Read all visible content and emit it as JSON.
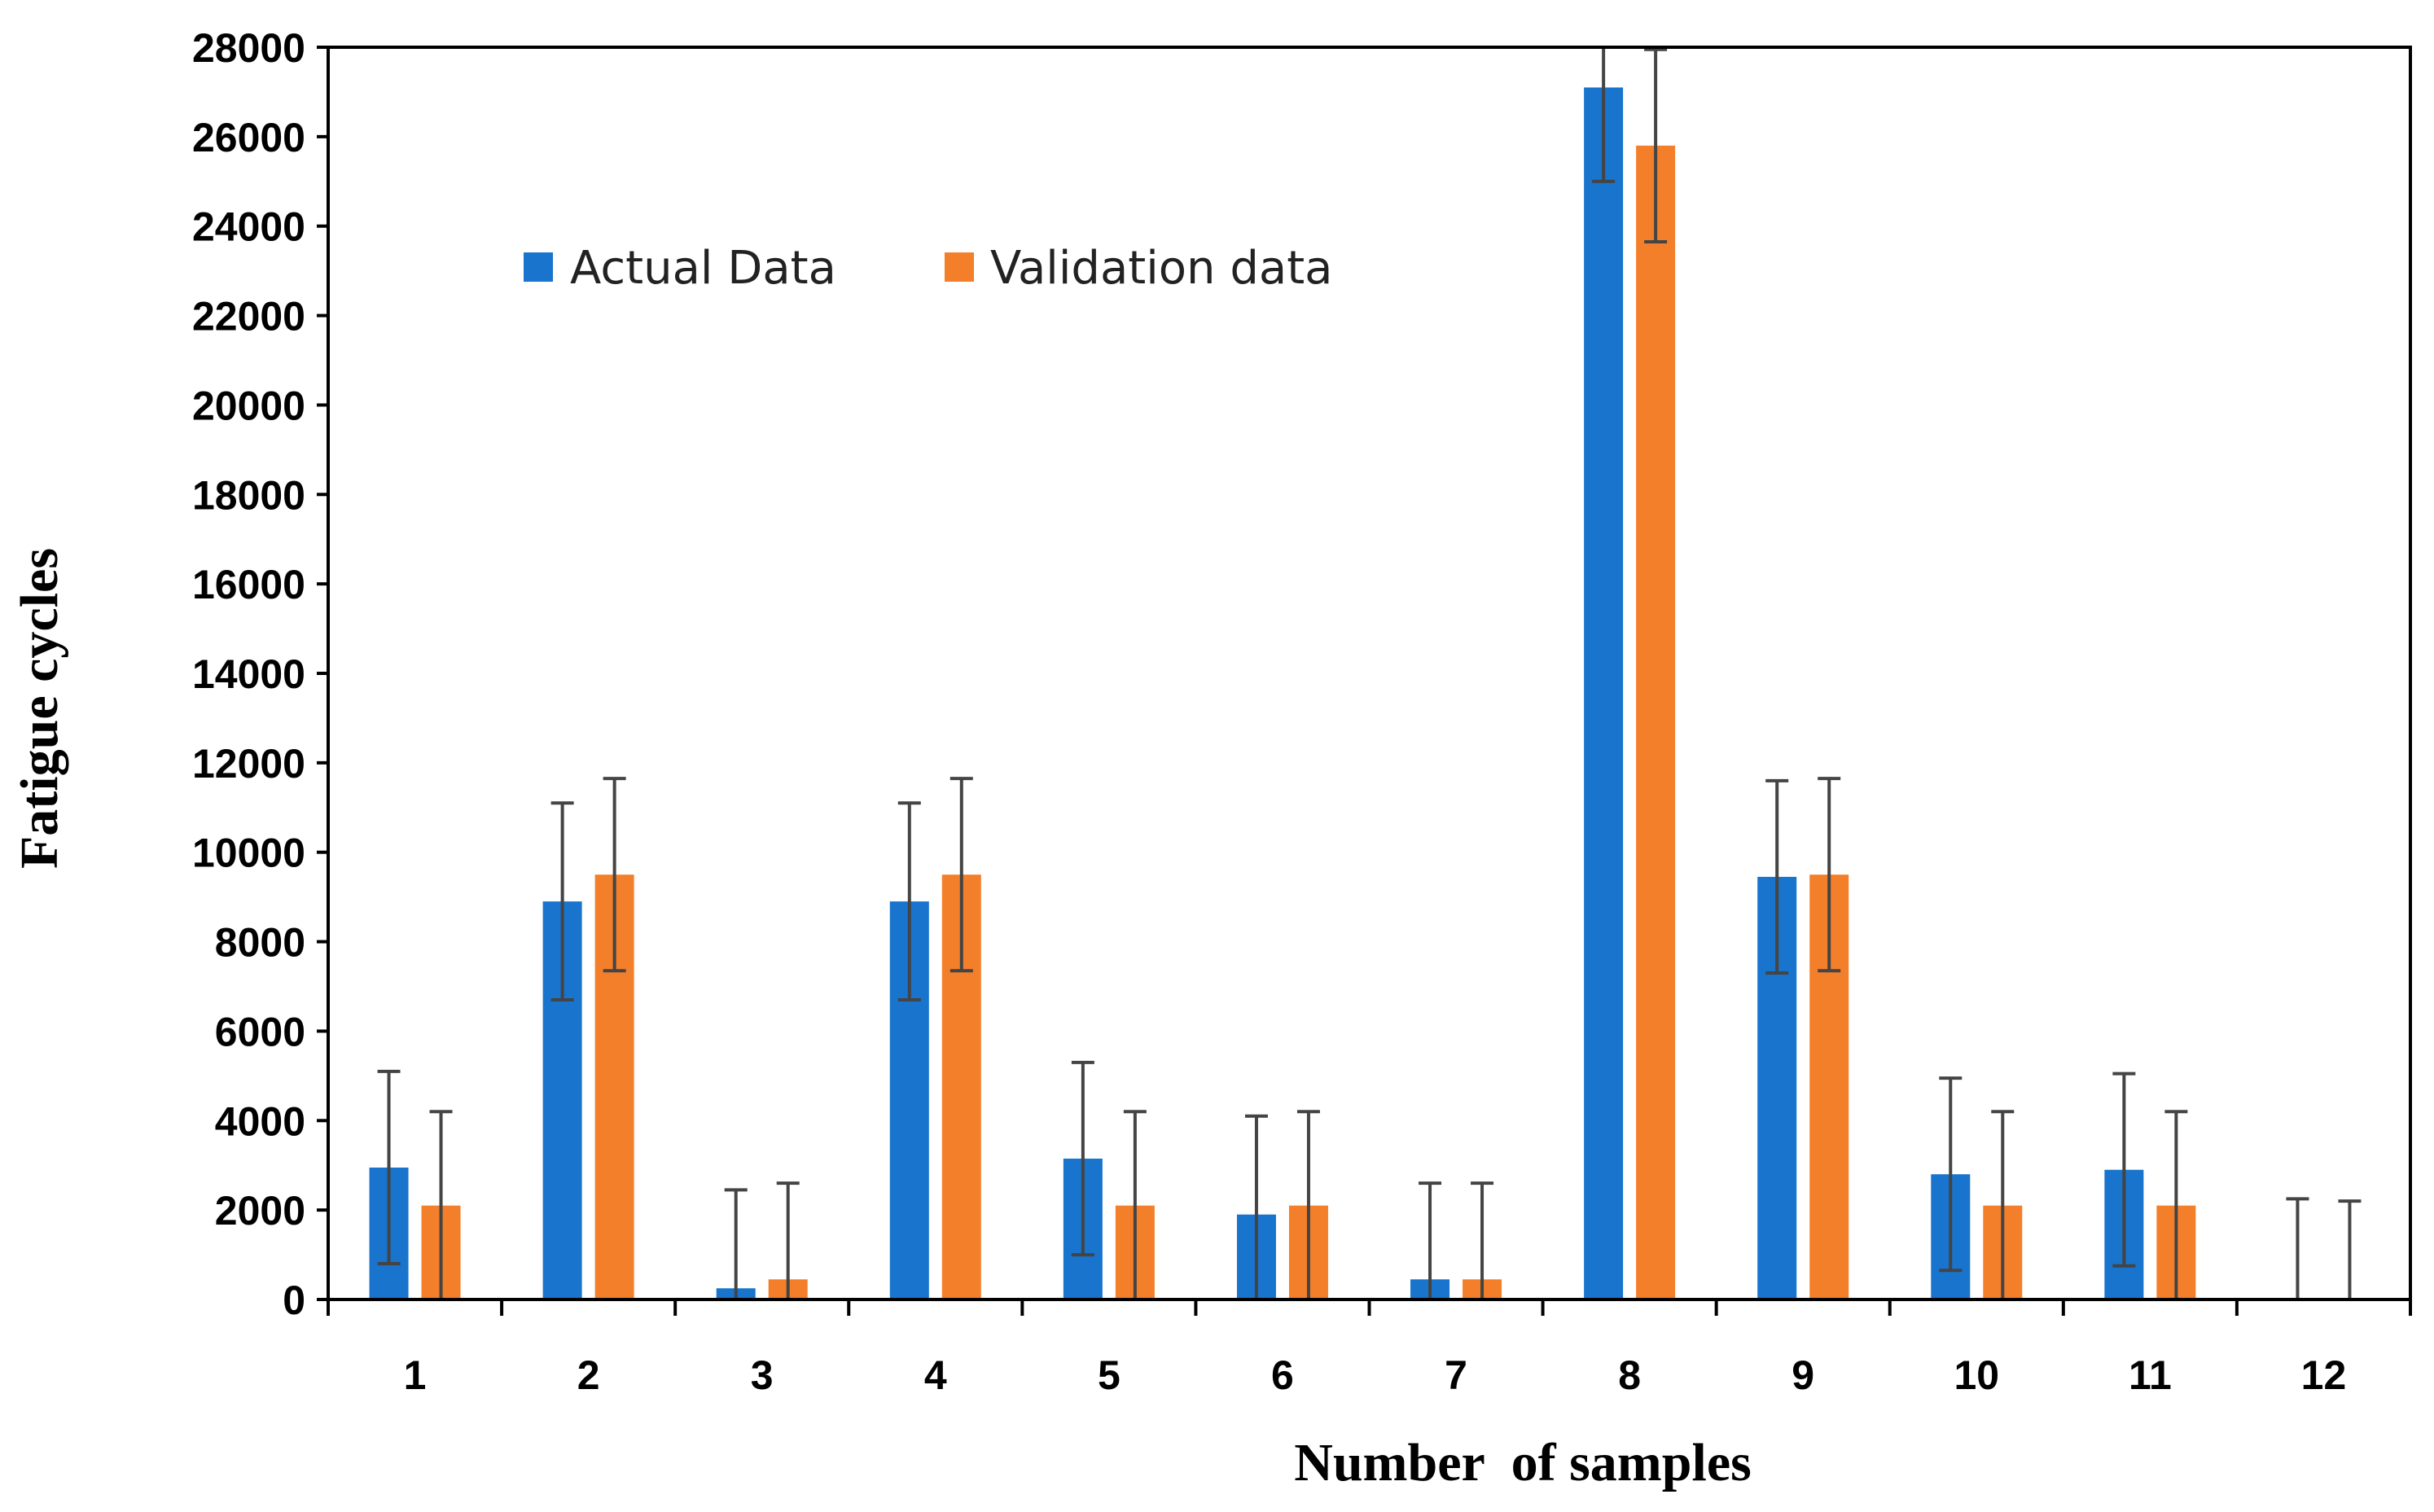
{
  "chart_data": {
    "type": "bar",
    "title": "",
    "xlabel": "Number  of samples",
    "ylabel": "Fatigue cycles",
    "categories": [
      "1",
      "2",
      "3",
      "4",
      "5",
      "6",
      "7",
      "8",
      "9",
      "10",
      "11",
      "12"
    ],
    "ylim": [
      0,
      28000
    ],
    "yticks": [
      "0",
      "2000",
      "4000",
      "6000",
      "8000",
      "10000",
      "12000",
      "14000",
      "16000",
      "18000",
      "20000",
      "22000",
      "24000",
      "26000",
      "28000"
    ],
    "legend_position": "top-left",
    "series": [
      {
        "name": "Actual Data",
        "color": "#1874cd",
        "values": [
          2950,
          8900,
          250,
          8900,
          3150,
          1900,
          450,
          27100,
          9450,
          2800,
          2900,
          0
        ],
        "error": [
          2150,
          2200,
          2200,
          2200,
          2150,
          2200,
          2150,
          2100,
          2150,
          2150,
          2150,
          2250
        ]
      },
      {
        "name": "Validation data",
        "color": "#f47f2a",
        "values": [
          2100,
          9500,
          450,
          9500,
          2100,
          2100,
          450,
          25800,
          9500,
          2100,
          2100,
          0
        ],
        "error": [
          2100,
          2150,
          2150,
          2150,
          2100,
          2100,
          2150,
          2150,
          2150,
          2100,
          2100,
          2200
        ]
      }
    ]
  }
}
